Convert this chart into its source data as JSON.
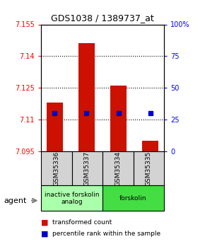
{
  "title": "GDS1038 / 1389737_at",
  "categories": [
    "GSM35336",
    "GSM35337",
    "GSM35334",
    "GSM35335"
  ],
  "ylim_left": [
    7.095,
    7.155
  ],
  "ylim_right": [
    0,
    100
  ],
  "yticks_left": [
    7.095,
    7.11,
    7.125,
    7.14,
    7.155
  ],
  "yticks_right": [
    0,
    25,
    50,
    75,
    100
  ],
  "ytick_labels_left": [
    "7.095",
    "7.11",
    "7.125",
    "7.14",
    "7.155"
  ],
  "ytick_labels_right": [
    "0",
    "25",
    "50",
    "75",
    "100%"
  ],
  "bar_bottoms": [
    7.095,
    7.095,
    7.095,
    7.095
  ],
  "bar_tops": [
    7.118,
    7.146,
    7.126,
    7.1
  ],
  "blue_percentiles": [
    30,
    30,
    30,
    30
  ],
  "bar_color": "#cc1100",
  "blue_color": "#0000cc",
  "background_color": "#ffffff",
  "plot_bg_color": "#ffffff",
  "agent_groups": [
    {
      "label": "inactive forskolin\nanalog",
      "span": [
        0,
        2
      ],
      "color": "#aaffaa"
    },
    {
      "label": "forskolin",
      "span": [
        2,
        4
      ],
      "color": "#44dd44"
    }
  ],
  "agent_label": "agent",
  "legend_items": [
    {
      "color": "#cc1100",
      "label": "transformed count"
    },
    {
      "color": "#0000cc",
      "label": "percentile rank within the sample"
    }
  ]
}
